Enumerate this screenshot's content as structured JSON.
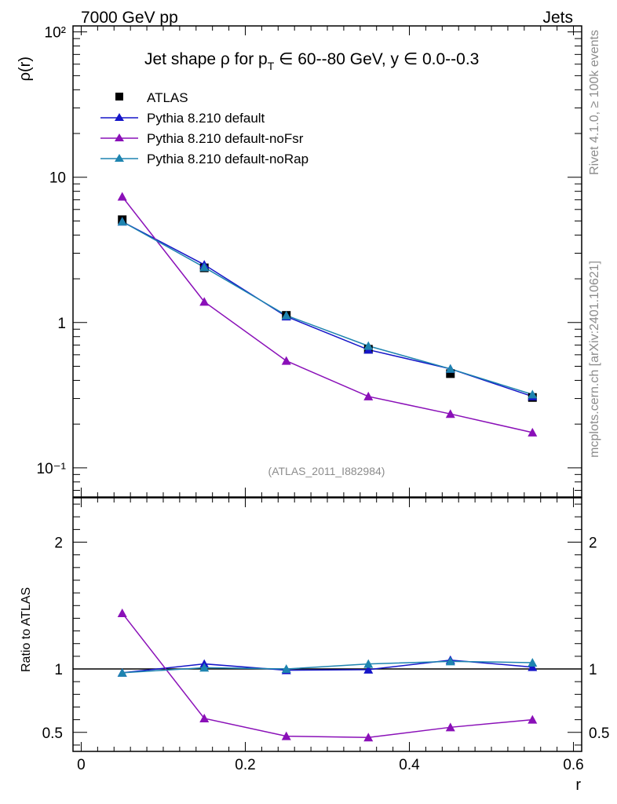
{
  "header": {
    "left": "7000 GeV pp",
    "right": "Jets"
  },
  "side_labels": {
    "rivet": "Rivet 4.1.0, ≥ 100k events",
    "mcplots": "mcplots.cern.ch [arXiv:2401.10621]"
  },
  "chart_data": {
    "type": "line",
    "title": "Jet shape ρ for p_T ∈ 60--80 GeV, y ∈ 0.0--0.3",
    "title_parts": {
      "prefix": "Jet shape ρ for p",
      "subscript": "T",
      "suffix": " ∈ 60--80 GeV, y ∈ 0.0--0.3"
    },
    "analysis_label": "(ATLAS_2011_I882984)",
    "x": [
      0.05,
      0.15,
      0.25,
      0.35,
      0.45,
      0.55
    ],
    "xlabel": "r",
    "xlim": [
      -0.01,
      0.61
    ],
    "xticks": [
      "0",
      "0.2",
      "0.4",
      "0.6"
    ],
    "main": {
      "ylabel": "ρ(r)",
      "yscale": "log",
      "ylim": [
        0.063,
        110
      ],
      "yticks": [
        "10⁻¹",
        "1",
        "10",
        "10²"
      ],
      "series": [
        {
          "name": "ATLAS",
          "color": "#000000",
          "marker": "square",
          "line": false,
          "values": [
            5.1,
            2.38,
            1.12,
            0.655,
            0.445,
            0.305
          ]
        },
        {
          "name": "Pythia 8.210 default",
          "color": "#1515c8",
          "marker": "triangle",
          "line": true,
          "values": [
            4.95,
            2.5,
            1.1,
            0.65,
            0.48,
            0.31
          ]
        },
        {
          "name": "Pythia 8.210 default-noFsr",
          "color": "#8a10b8",
          "marker": "triangle",
          "line": true,
          "values": [
            7.35,
            1.39,
            0.545,
            0.31,
            0.235,
            0.175
          ]
        },
        {
          "name": "Pythia 8.210 default-noRap",
          "color": "#1e84b0",
          "marker": "triangle",
          "line": true,
          "values": [
            4.95,
            2.4,
            1.12,
            0.69,
            0.48,
            0.32
          ]
        }
      ]
    },
    "ratio": {
      "ylabel": "Ratio to ATLAS",
      "ylim": [
        0.35,
        2.35
      ],
      "yticks": [
        "0.5",
        "1",
        "2"
      ],
      "reference": 1.0,
      "series": [
        {
          "name": "Pythia 8.210 default",
          "color": "#1515c8",
          "values": [
            0.97,
            1.04,
            0.99,
            0.995,
            1.07,
            1.015
          ],
          "errors": [
            0.01,
            0.012,
            0.015,
            0.015,
            0.025,
            0.02
          ]
        },
        {
          "name": "Pythia 8.210 default-noFsr",
          "color": "#8a10b8",
          "values": [
            1.44,
            0.61,
            0.47,
            0.46,
            0.54,
            0.6
          ],
          "errors": [
            0.01,
            0.012,
            0.015,
            0.015,
            0.02,
            0.02
          ]
        },
        {
          "name": "Pythia 8.210 default-noRap",
          "color": "#1e84b0",
          "values": [
            0.97,
            1.01,
            1.0,
            1.04,
            1.06,
            1.05
          ],
          "errors": [
            0.01,
            0.012,
            0.015,
            0.015,
            0.025,
            0.025
          ]
        }
      ]
    }
  }
}
